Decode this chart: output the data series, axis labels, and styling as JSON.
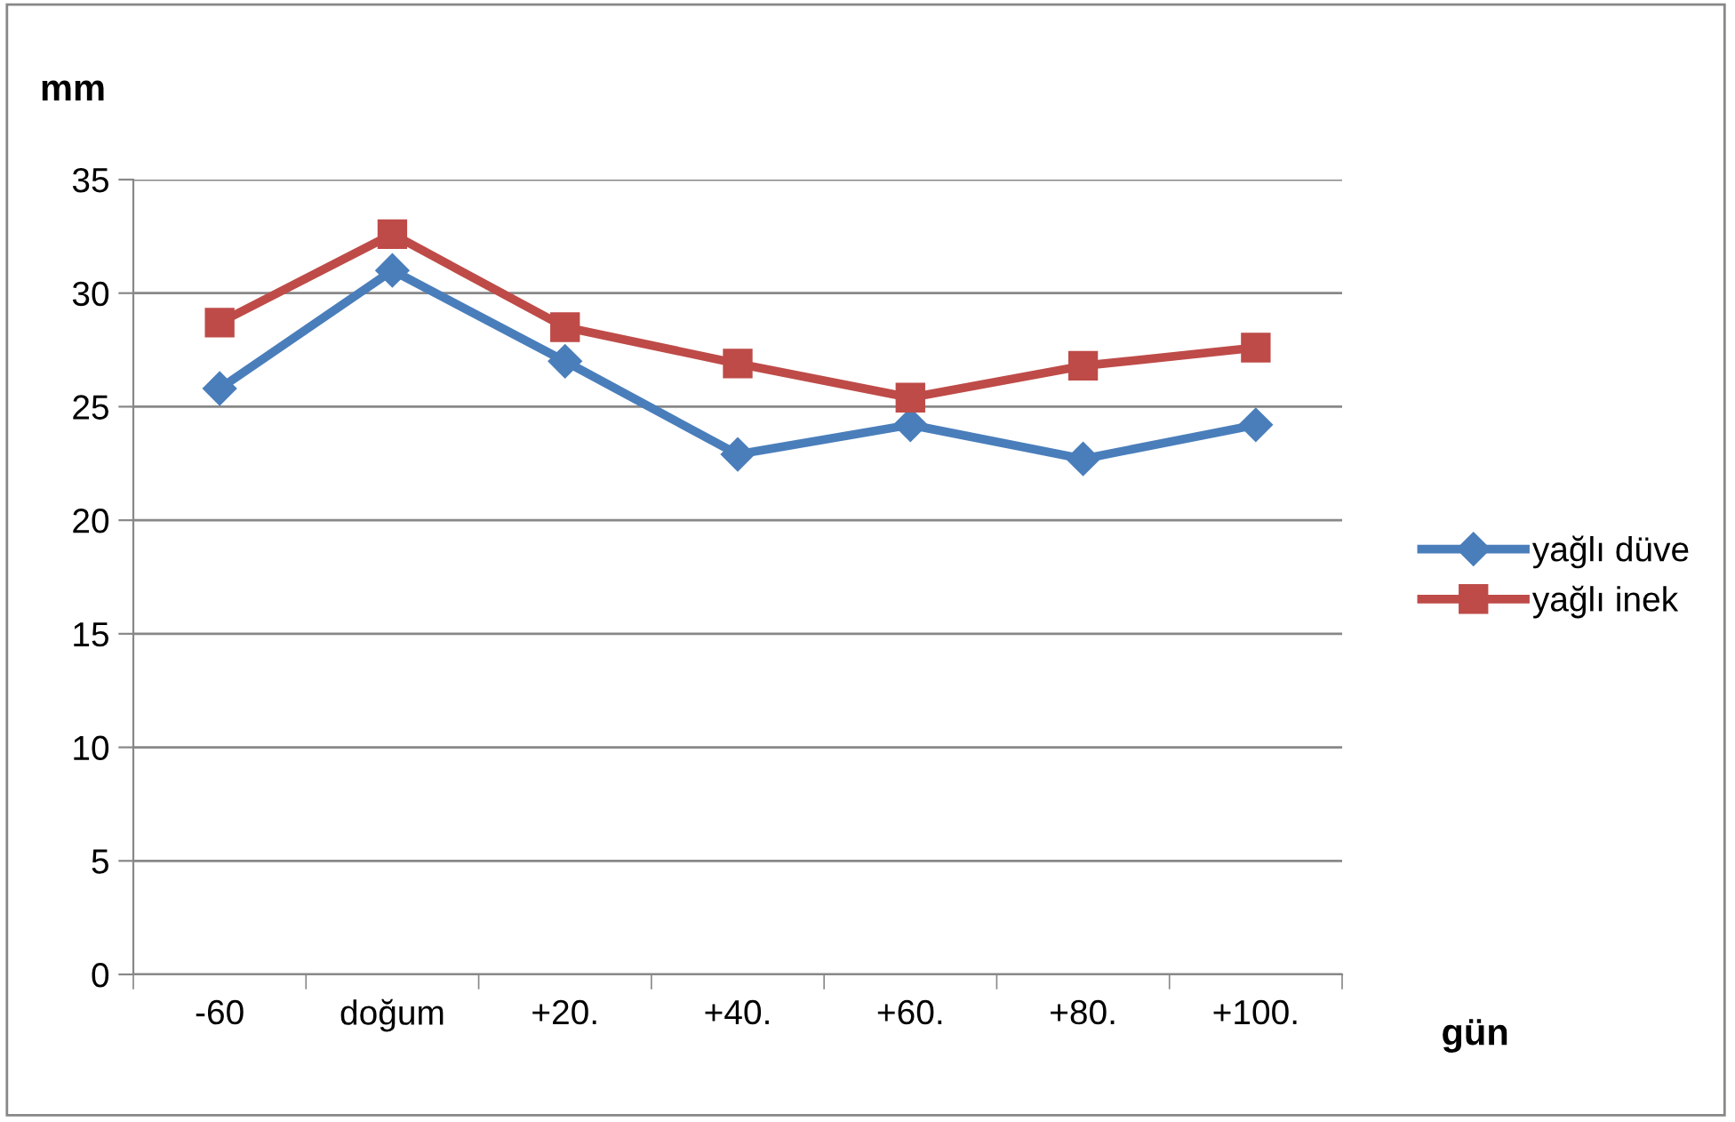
{
  "chart_data": {
    "type": "line",
    "ylabel": "mm",
    "xlabel": "gün",
    "categories": [
      "-60",
      "doğum",
      "+20.",
      "+40.",
      "+60.",
      "+80.",
      "+100."
    ],
    "series": [
      {
        "name": "yağlı düve",
        "color": "#4a7ebb",
        "marker": "diamond",
        "values": [
          25.8,
          31.0,
          27.0,
          22.9,
          24.2,
          22.7,
          24.2
        ]
      },
      {
        "name": "yağlı inek",
        "color": "#be4b48",
        "marker": "square",
        "values": [
          28.7,
          32.6,
          28.5,
          26.9,
          25.4,
          26.8,
          27.6
        ]
      }
    ],
    "ylim": [
      0,
      35
    ],
    "yticks": [
      0,
      5,
      10,
      15,
      20,
      25,
      30,
      35
    ],
    "grid": "y",
    "legend": "right",
    "line_style": "solid"
  }
}
